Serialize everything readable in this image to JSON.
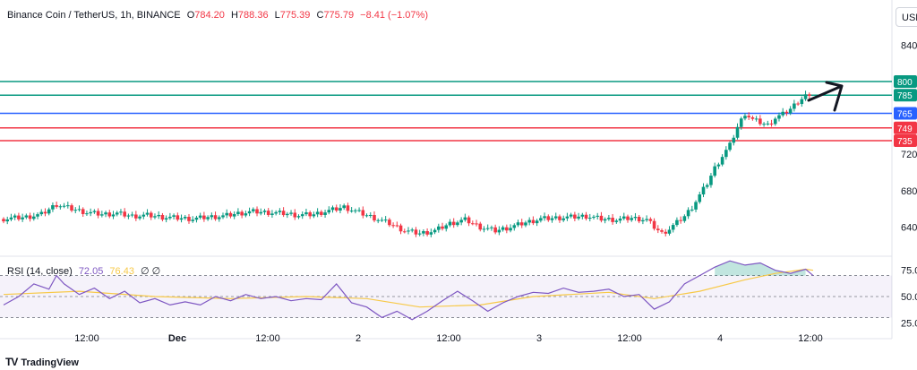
{
  "header": {
    "symbol": "Binance Coin / TetherUS, 1h, BINANCE",
    "open_label": "O",
    "open": "784.20",
    "high_label": "H",
    "high": "788.36",
    "low_label": "L",
    "low": "775.39",
    "close_label": "C",
    "close": "775.79",
    "change": "−8.41 (−1.07%)"
  },
  "currency_button": "USD",
  "rsi_header": {
    "label": "RSI (14, close)",
    "rsi_value": "72.05",
    "ma_value": "76.43",
    "extra": "∅ ∅"
  },
  "logo_text": "TradingView",
  "colors": {
    "up": "#089981",
    "down": "#f23645",
    "rsi": "#7e57c2",
    "rsi_ma": "#f7c948",
    "line_800": "#089981",
    "line_785": "#089981",
    "line_765": "#2962ff",
    "line_749": "#f23645",
    "line_735": "#f23645"
  },
  "chart_data": [
    {
      "type": "candlestick",
      "title": "Binance Coin / TetherUS, 1h, BINANCE",
      "x_tick_labels": [
        "12:00",
        "Dec",
        "12:00",
        "2",
        "12:00",
        "3",
        "12:00",
        "4",
        "12:00"
      ],
      "y_tick_labels": [
        "840",
        "720",
        "680",
        "640"
      ],
      "ylim": [
        608,
        860
      ],
      "series_close_path": [
        [
          0,
          649
        ],
        [
          6,
          651
        ],
        [
          10,
          654
        ],
        [
          14,
          665
        ],
        [
          18,
          660
        ],
        [
          22,
          656
        ],
        [
          26,
          654
        ],
        [
          30,
          655
        ],
        [
          34,
          652
        ],
        [
          38,
          653
        ],
        [
          42,
          651
        ],
        [
          46,
          650
        ],
        [
          50,
          649
        ],
        [
          54,
          651
        ],
        [
          58,
          652
        ],
        [
          62,
          655
        ],
        [
          66,
          657
        ],
        [
          70,
          656
        ],
        [
          74,
          655
        ],
        [
          78,
          653
        ],
        [
          82,
          654
        ],
        [
          86,
          658
        ],
        [
          90,
          662
        ],
        [
          94,
          656
        ],
        [
          98,
          650
        ],
        [
          102,
          644
        ],
        [
          106,
          636
        ],
        [
          110,
          633
        ],
        [
          114,
          636
        ],
        [
          118,
          644
        ],
        [
          122,
          648
        ],
        [
          126,
          640
        ],
        [
          130,
          636
        ],
        [
          134,
          640
        ],
        [
          138,
          645
        ],
        [
          142,
          649
        ],
        [
          146,
          650
        ],
        [
          150,
          651
        ],
        [
          154,
          652
        ],
        [
          158,
          649
        ],
        [
          162,
          648
        ],
        [
          166,
          650
        ],
        [
          170,
          648
        ],
        [
          172,
          640
        ],
        [
          174,
          633
        ],
        [
          176,
          638
        ],
        [
          178,
          645
        ],
        [
          180,
          652
        ],
        [
          182,
          662
        ],
        [
          184,
          675
        ],
        [
          186,
          688
        ],
        [
          188,
          705
        ],
        [
          190,
          718
        ],
        [
          192,
          730
        ],
        [
          194,
          750
        ],
        [
          196,
          765
        ],
        [
          198,
          758
        ],
        [
          200,
          755
        ],
        [
          202,
          752
        ],
        [
          204,
          760
        ],
        [
          206,
          764
        ],
        [
          208,
          770
        ],
        [
          210,
          778
        ],
        [
          212,
          785
        ],
        [
          214,
          778
        ]
      ],
      "horizontal_levels": [
        {
          "value": 800,
          "label": "800"
        },
        {
          "value": 785,
          "label": "785"
        },
        {
          "value": 765,
          "label": "765"
        },
        {
          "value": 749,
          "label": "749"
        },
        {
          "value": 735,
          "label": "735"
        }
      ]
    },
    {
      "type": "line",
      "title": "RSI (14, close)",
      "y_tick_labels": [
        "75.00",
        "50.00",
        "25.00"
      ],
      "ylim": [
        15,
        85
      ],
      "bands": [
        30,
        70
      ],
      "rsi": [
        [
          0,
          42
        ],
        [
          4,
          50
        ],
        [
          8,
          62
        ],
        [
          12,
          57
        ],
        [
          14,
          70
        ],
        [
          16,
          62
        ],
        [
          20,
          52
        ],
        [
          24,
          58
        ],
        [
          28,
          48
        ],
        [
          32,
          55
        ],
        [
          36,
          44
        ],
        [
          40,
          48
        ],
        [
          44,
          42
        ],
        [
          48,
          45
        ],
        [
          52,
          42
        ],
        [
          56,
          50
        ],
        [
          60,
          46
        ],
        [
          64,
          52
        ],
        [
          68,
          48
        ],
        [
          72,
          50
        ],
        [
          76,
          46
        ],
        [
          80,
          48
        ],
        [
          84,
          47
        ],
        [
          88,
          62
        ],
        [
          92,
          44
        ],
        [
          96,
          40
        ],
        [
          100,
          30
        ],
        [
          104,
          36
        ],
        [
          108,
          28
        ],
        [
          112,
          36
        ],
        [
          116,
          46
        ],
        [
          120,
          55
        ],
        [
          124,
          46
        ],
        [
          128,
          36
        ],
        [
          132,
          44
        ],
        [
          136,
          50
        ],
        [
          140,
          54
        ],
        [
          144,
          53
        ],
        [
          148,
          58
        ],
        [
          152,
          54
        ],
        [
          156,
          55
        ],
        [
          160,
          57
        ],
        [
          164,
          50
        ],
        [
          168,
          52
        ],
        [
          172,
          38
        ],
        [
          176,
          45
        ],
        [
          180,
          62
        ],
        [
          184,
          70
        ],
        [
          188,
          78
        ],
        [
          192,
          84
        ],
        [
          196,
          80
        ],
        [
          200,
          82
        ],
        [
          204,
          75
        ],
        [
          208,
          72
        ],
        [
          212,
          76
        ],
        [
          214,
          70
        ]
      ],
      "rsi_ma": [
        [
          0,
          52
        ],
        [
          20,
          55
        ],
        [
          40,
          50
        ],
        [
          60,
          48
        ],
        [
          80,
          50
        ],
        [
          96,
          48
        ],
        [
          110,
          40
        ],
        [
          126,
          42
        ],
        [
          140,
          50
        ],
        [
          160,
          54
        ],
        [
          172,
          48
        ],
        [
          184,
          55
        ],
        [
          196,
          66
        ],
        [
          204,
          72
        ],
        [
          212,
          76
        ],
        [
          214,
          75
        ]
      ]
    }
  ]
}
